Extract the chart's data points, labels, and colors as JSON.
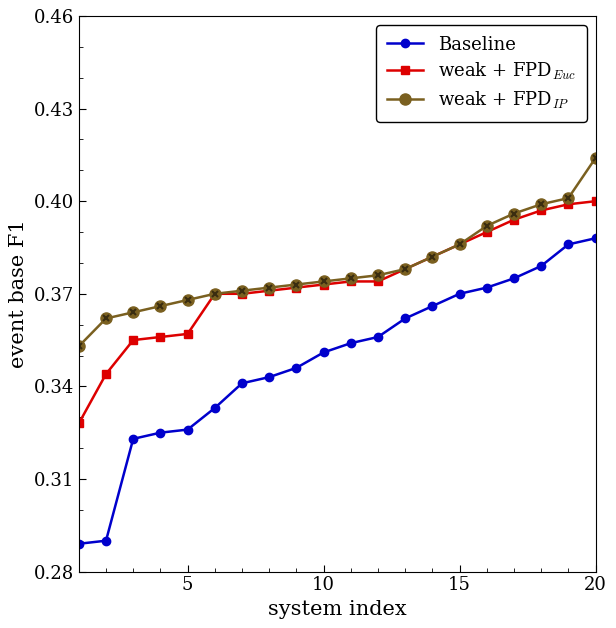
{
  "x": [
    1,
    2,
    3,
    4,
    5,
    6,
    7,
    8,
    9,
    10,
    11,
    12,
    13,
    14,
    15,
    16,
    17,
    18,
    19,
    20
  ],
  "baseline": [
    0.289,
    0.29,
    0.323,
    0.325,
    0.326,
    0.333,
    0.341,
    0.343,
    0.346,
    0.351,
    0.354,
    0.356,
    0.362,
    0.366,
    0.37,
    0.372,
    0.375,
    0.379,
    0.386,
    0.388
  ],
  "fpd_euc": [
    0.328,
    0.344,
    0.355,
    0.356,
    0.357,
    0.37,
    0.37,
    0.371,
    0.372,
    0.373,
    0.374,
    0.374,
    0.378,
    0.382,
    0.386,
    0.39,
    0.394,
    0.397,
    0.399,
    0.4
  ],
  "fpd_ip": [
    0.353,
    0.362,
    0.364,
    0.366,
    0.368,
    0.37,
    0.371,
    0.372,
    0.373,
    0.374,
    0.375,
    0.376,
    0.378,
    0.382,
    0.386,
    0.392,
    0.396,
    0.399,
    0.401,
    0.414
  ],
  "baseline_color": "#0000cc",
  "fpd_euc_color": "#dd0000",
  "fpd_ip_color": "#7a6020",
  "fpd_ip_marker_cross_color": "#3a2d10",
  "ylim": [
    0.28,
    0.46
  ],
  "yticks": [
    0.28,
    0.31,
    0.34,
    0.37,
    0.4,
    0.43,
    0.46
  ],
  "xticks": [
    5,
    10,
    15,
    20
  ],
  "xlabel": "system index",
  "ylabel": "event base F1",
  "legend_labels": [
    "Baseline",
    "weak + FPD$_{Euc}$",
    "weak + FPD$_{IP}$"
  ],
  "figsize": [
    6.16,
    6.28
  ],
  "dpi": 100
}
